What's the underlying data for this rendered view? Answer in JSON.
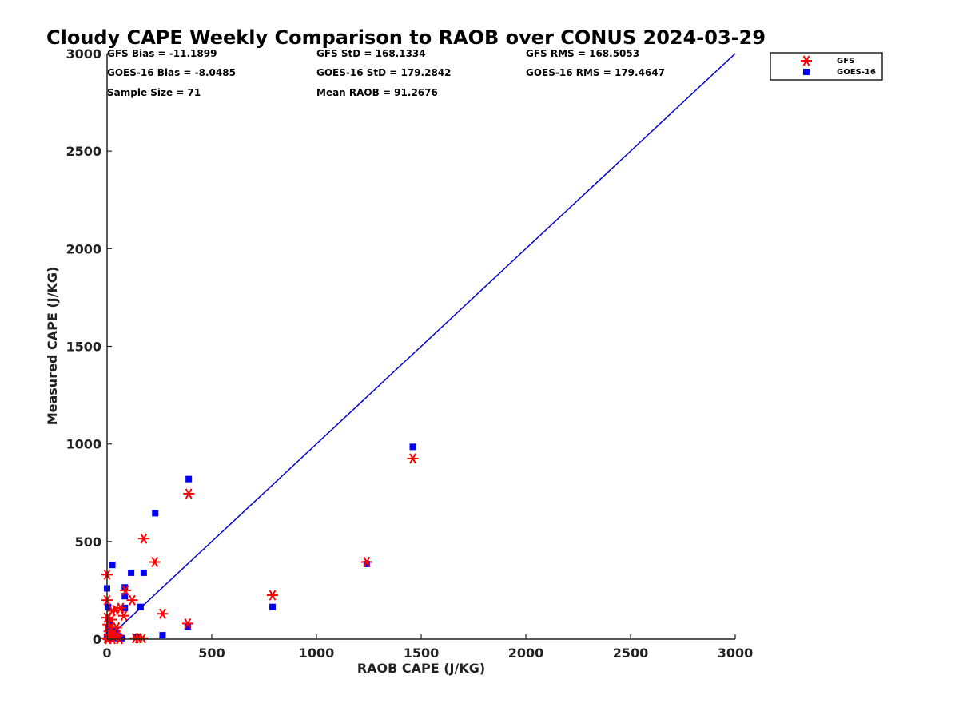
{
  "chart_data": {
    "type": "scatter",
    "title": "Cloudy CAPE Weekly Comparison to RAOB over CONUS 2024-03-29",
    "xlabel": "RAOB CAPE (J/KG)",
    "ylabel": "Measured CAPE (J/KG)",
    "xlim": [
      0,
      3000
    ],
    "ylim": [
      0,
      3000
    ],
    "xticks": [
      0,
      500,
      1000,
      1500,
      2000,
      2500,
      3000
    ],
    "yticks": [
      0,
      500,
      1000,
      1500,
      2000,
      2500,
      3000
    ],
    "grid": false,
    "legend_position": "top-right",
    "stats": [
      [
        "GFS Bias = -11.1899",
        "GFS StD = 168.1334",
        "GFS RMS = 168.5053"
      ],
      [
        "GOES-16 Bias = -8.0485",
        "GOES-16 StD = 179.2842",
        "GOES-16 RMS = 179.4647"
      ],
      [
        "Sample Size = 71",
        "Mean RAOB = 91.2676",
        ""
      ]
    ],
    "reference_line": {
      "x": [
        0,
        3000
      ],
      "y": [
        0,
        3000
      ],
      "color": "#0000cc"
    },
    "series": [
      {
        "name": "GFS",
        "marker": "asterisk",
        "color": "#ff0000",
        "points": [
          [
            1460,
            925
          ],
          [
            390,
            745
          ],
          [
            175,
            515
          ],
          [
            228,
            395
          ],
          [
            1240,
            395
          ],
          [
            790,
            225
          ],
          [
            0,
            330
          ],
          [
            0,
            200
          ],
          [
            88,
            250
          ],
          [
            120,
            200
          ],
          [
            40,
            150
          ],
          [
            65,
            160
          ],
          [
            25,
            145
          ],
          [
            80,
            120
          ],
          [
            265,
            130
          ],
          [
            385,
            80
          ],
          [
            5,
            75
          ],
          [
            20,
            60
          ],
          [
            45,
            60
          ],
          [
            10,
            40
          ],
          [
            30,
            30
          ],
          [
            15,
            15
          ],
          [
            40,
            10
          ],
          [
            0,
            5
          ],
          [
            150,
            5
          ],
          [
            170,
            5
          ],
          [
            135,
            5
          ],
          [
            5,
            0
          ],
          [
            25,
            0
          ],
          [
            60,
            0
          ],
          [
            0,
            110
          ],
          [
            10,
            20
          ],
          [
            50,
            20
          ],
          [
            20,
            100
          ]
        ]
      },
      {
        "name": "GOES-16",
        "marker": "square",
        "color": "#0000ff",
        "points": [
          [
            1460,
            985
          ],
          [
            390,
            820
          ],
          [
            230,
            645
          ],
          [
            25,
            380
          ],
          [
            1240,
            385
          ],
          [
            115,
            340
          ],
          [
            175,
            340
          ],
          [
            0,
            260
          ],
          [
            85,
            265
          ],
          [
            85,
            220
          ],
          [
            5,
            165
          ],
          [
            85,
            160
          ],
          [
            160,
            165
          ],
          [
            790,
            165
          ],
          [
            385,
            65
          ],
          [
            15,
            90
          ],
          [
            40,
            45
          ],
          [
            10,
            40
          ],
          [
            265,
            20
          ],
          [
            140,
            10
          ],
          [
            0,
            10
          ],
          [
            45,
            5
          ],
          [
            70,
            5
          ],
          [
            20,
            0
          ],
          [
            30,
            20
          ],
          [
            5,
            60
          ],
          [
            10,
            30
          ],
          [
            55,
            15
          ]
        ]
      }
    ]
  }
}
